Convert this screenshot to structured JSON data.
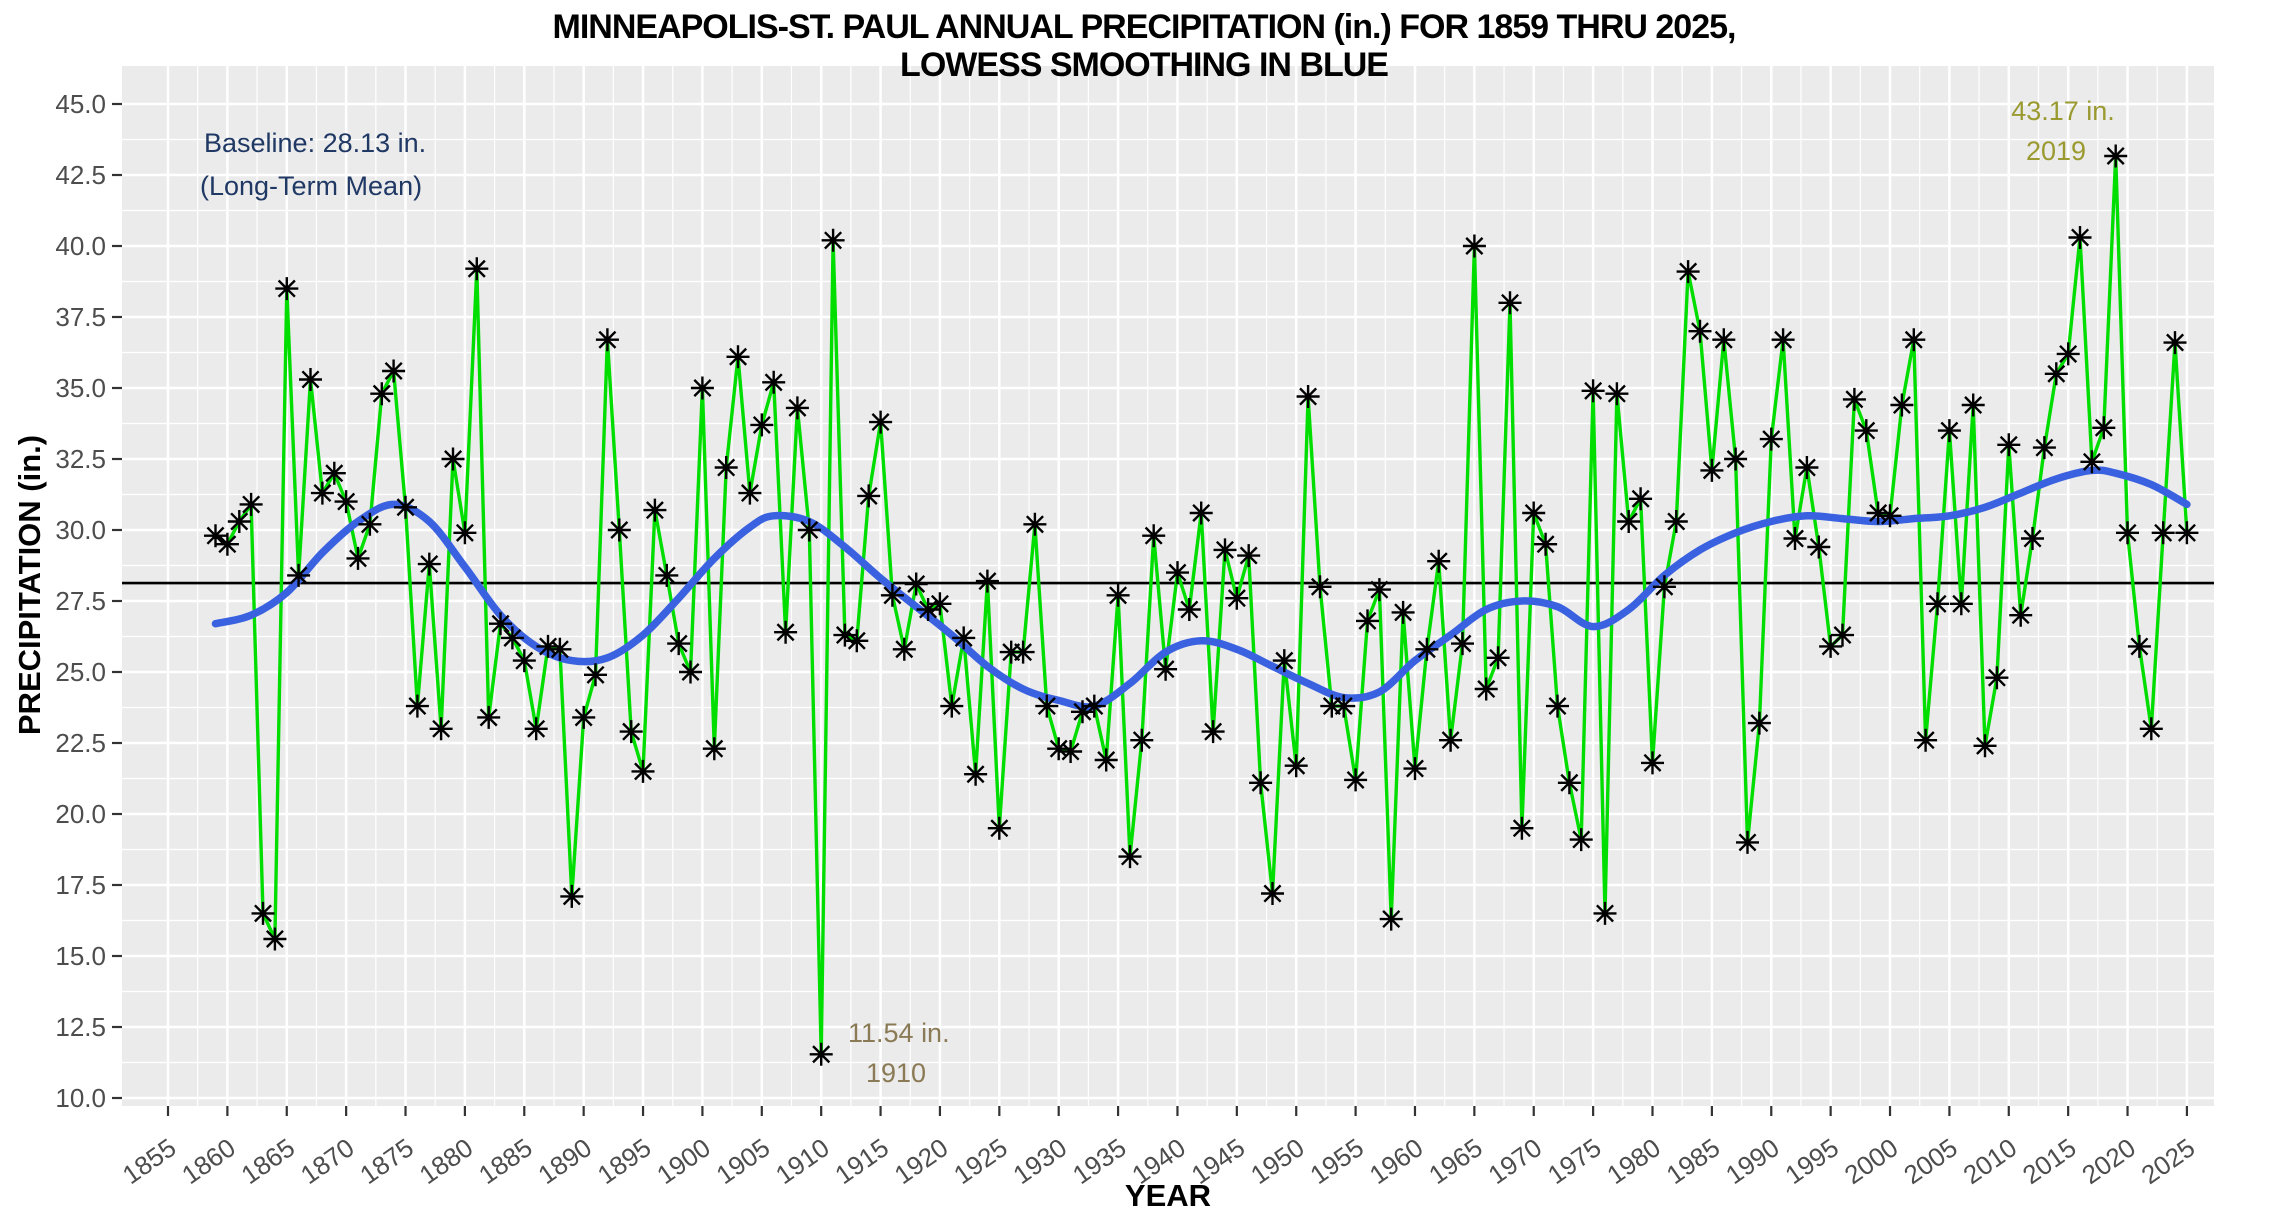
{
  "chart_data": {
    "type": "line",
    "title_line1": "MINNEAPOLIS-ST. PAUL ANNUAL PRECIPITATION (in.) FOR 1859 THRU 2025,",
    "title_line2": "LOWESS SMOOTHING IN BLUE",
    "xlabel": "YEAR",
    "ylabel": "PRECIPITATION (in.)",
    "x_axis": {
      "min": 1855,
      "max": 2025,
      "tick_step": 5,
      "tick_labels": [
        1855,
        1860,
        1865,
        1870,
        1875,
        1880,
        1885,
        1890,
        1895,
        1900,
        1905,
        1910,
        1915,
        1920,
        1925,
        1930,
        1935,
        1940,
        1945,
        1950,
        1955,
        1960,
        1965,
        1970,
        1975,
        1980,
        1985,
        1990,
        1995,
        2000,
        2005,
        2010,
        2015,
        2020,
        2025
      ]
    },
    "y_axis": {
      "min": 10.0,
      "max": 45.0,
      "tick_step": 2.5,
      "tick_labels": [
        "10.0",
        "12.5",
        "15.0",
        "17.5",
        "20.0",
        "22.5",
        "25.0",
        "27.5",
        "30.0",
        "32.5",
        "35.0",
        "37.5",
        "40.0",
        "42.5",
        "45.0"
      ]
    },
    "grid": {
      "panel_color": "#EBEBEB",
      "grid_color": "#FFFFFF"
    },
    "axis_text_color": "#4D4D4D",
    "baseline": {
      "value": 28.13,
      "color": "#000000",
      "label_line1": "Baseline: 28.13 in.",
      "label_line2": "(Long-Term Mean)",
      "label_color": "#1F3864"
    },
    "series": [
      {
        "name": "annual-precipitation",
        "color": "#00DE00",
        "marker": "asterisk",
        "marker_color": "#000000",
        "start_year": 1859,
        "values": [
          29.8,
          29.5,
          30.3,
          30.9,
          16.5,
          15.6,
          38.5,
          28.4,
          35.3,
          31.3,
          32.0,
          31.0,
          29.0,
          30.2,
          34.8,
          35.6,
          30.8,
          23.8,
          28.8,
          23.0,
          32.5,
          29.9,
          39.2,
          23.4,
          26.7,
          26.2,
          25.4,
          23.0,
          25.9,
          25.8,
          17.1,
          23.4,
          24.9,
          36.7,
          30.0,
          22.9,
          21.5,
          30.7,
          28.4,
          26.0,
          25.0,
          35.0,
          22.3,
          32.2,
          36.1,
          31.3,
          33.7,
          35.2,
          26.4,
          34.3,
          30.0,
          11.54,
          40.2,
          26.3,
          26.1,
          31.2,
          33.8,
          27.7,
          25.8,
          28.1,
          27.2,
          27.4,
          23.8,
          26.2,
          21.4,
          28.2,
          19.5,
          25.7,
          25.7,
          30.2,
          23.8,
          22.3,
          22.2,
          23.6,
          23.8,
          21.9,
          27.7,
          18.5,
          22.6,
          29.8,
          25.1,
          28.5,
          27.2,
          30.6,
          22.9,
          29.3,
          27.6,
          29.1,
          21.1,
          17.2,
          25.4,
          21.7,
          34.7,
          28.0,
          23.8,
          23.8,
          21.2,
          26.8,
          27.9,
          16.3,
          27.1,
          21.6,
          25.8,
          28.9,
          22.6,
          26.0,
          40.0,
          24.4,
          25.5,
          38.0,
          19.5,
          30.6,
          29.5,
          23.8,
          21.1,
          19.1,
          34.9,
          16.5,
          34.8,
          30.3,
          31.1,
          21.8,
          28.0,
          30.3,
          39.1,
          37.0,
          32.1,
          36.7,
          32.5,
          19.0,
          23.2,
          33.2,
          36.7,
          29.7,
          32.2,
          29.4,
          25.9,
          26.3,
          34.6,
          33.5,
          30.6,
          30.5,
          34.4,
          36.7,
          22.6,
          27.4,
          33.5,
          27.4,
          34.4,
          22.4,
          24.8,
          33.0,
          27.0,
          29.7,
          32.9,
          35.5,
          36.2,
          40.3,
          32.4,
          33.6,
          43.17,
          29.9,
          25.9,
          23.0,
          29.9,
          36.6,
          29.9
        ]
      }
    ],
    "lowess": {
      "name": "lowess-smoothing",
      "color": "#3A62E0",
      "points": [
        [
          1859,
          26.7
        ],
        [
          1862,
          27.0
        ],
        [
          1865,
          27.8
        ],
        [
          1868,
          29.2
        ],
        [
          1871,
          30.3
        ],
        [
          1874,
          30.9
        ],
        [
          1877,
          30.3
        ],
        [
          1880,
          28.7
        ],
        [
          1883,
          27.0
        ],
        [
          1886,
          25.9
        ],
        [
          1889,
          25.4
        ],
        [
          1892,
          25.5
        ],
        [
          1895,
          26.3
        ],
        [
          1898,
          27.6
        ],
        [
          1901,
          29.0
        ],
        [
          1904,
          30.1
        ],
        [
          1906,
          30.5
        ],
        [
          1909,
          30.3
        ],
        [
          1912,
          29.4
        ],
        [
          1915,
          28.3
        ],
        [
          1918,
          27.3
        ],
        [
          1921,
          26.3
        ],
        [
          1924,
          25.2
        ],
        [
          1927,
          24.4
        ],
        [
          1930,
          24.0
        ],
        [
          1933,
          23.8
        ],
        [
          1936,
          24.6
        ],
        [
          1939,
          25.7
        ],
        [
          1942,
          26.1
        ],
        [
          1945,
          25.8
        ],
        [
          1948,
          25.2
        ],
        [
          1951,
          24.6
        ],
        [
          1954,
          24.1
        ],
        [
          1957,
          24.3
        ],
        [
          1960,
          25.4
        ],
        [
          1963,
          26.3
        ],
        [
          1966,
          27.2
        ],
        [
          1969,
          27.5
        ],
        [
          1972,
          27.3
        ],
        [
          1975,
          26.6
        ],
        [
          1978,
          27.2
        ],
        [
          1981,
          28.4
        ],
        [
          1984,
          29.3
        ],
        [
          1987,
          29.9
        ],
        [
          1990,
          30.3
        ],
        [
          1993,
          30.5
        ],
        [
          1996,
          30.4
        ],
        [
          1999,
          30.3
        ],
        [
          2002,
          30.4
        ],
        [
          2005,
          30.5
        ],
        [
          2008,
          30.8
        ],
        [
          2011,
          31.3
        ],
        [
          2014,
          31.8
        ],
        [
          2017,
          32.1
        ],
        [
          2019,
          32.0
        ],
        [
          2022,
          31.6
        ],
        [
          2025,
          30.9
        ]
      ]
    },
    "annotations": [
      {
        "name": "max-annotation",
        "line1": "43.17 in.",
        "line2": "2019",
        "color": "#9A9A30"
      },
      {
        "name": "min-annotation",
        "line1": "11.54 in.",
        "line2": "1910",
        "color": "#8A7A55"
      }
    ]
  }
}
